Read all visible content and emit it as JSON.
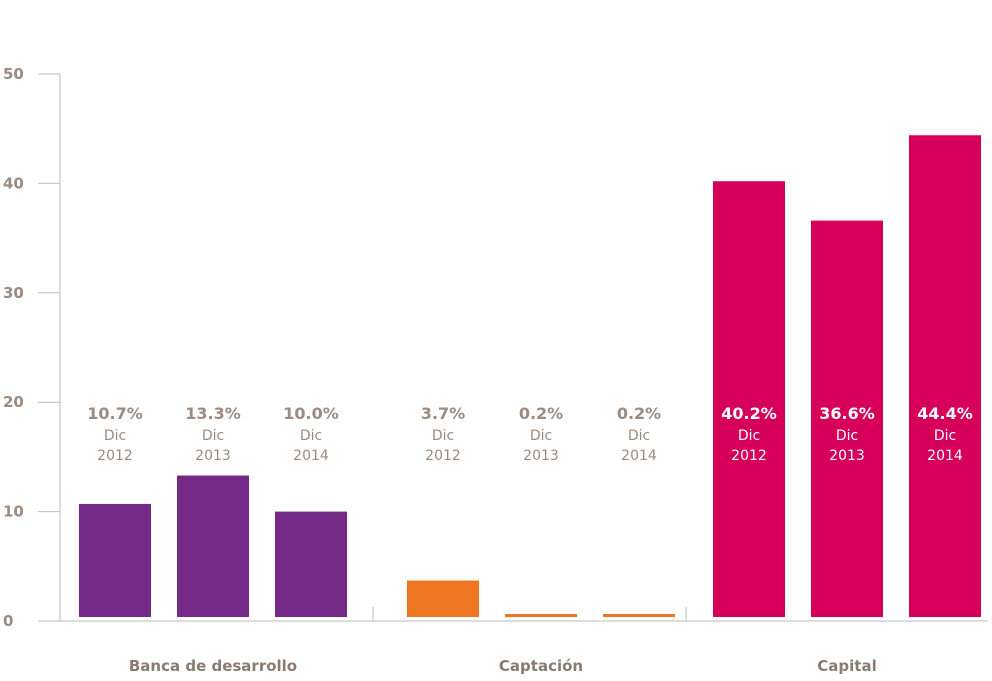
{
  "chart_data": {
    "type": "bar",
    "ylim": [
      0,
      50
    ],
    "yticks": [
      "0",
      "10",
      "20",
      "30",
      "40",
      "50"
    ],
    "grid": false,
    "groups": [
      {
        "name": "Banca de desarrollo",
        "color": "#762a88",
        "bars": [
          {
            "value": 10.7,
            "label": "10.7%",
            "line1": "Dic",
            "line2": "2012"
          },
          {
            "value": 13.3,
            "label": "13.3%",
            "line1": "Dic",
            "line2": "2013"
          },
          {
            "value": 10.0,
            "label": "10.0%",
            "line1": "Dic",
            "line2": "2014"
          }
        ]
      },
      {
        "name": "Captación",
        "color": "#ef7622",
        "bars": [
          {
            "value": 3.7,
            "label": "3.7%",
            "line1": "Dic",
            "line2": "2012"
          },
          {
            "value": 0.2,
            "label": "0.2%",
            "line1": "Dic",
            "line2": "2013"
          },
          {
            "value": 0.2,
            "label": "0.2%",
            "line1": "Dic",
            "line2": "2014"
          }
        ]
      },
      {
        "name": "Capital",
        "color": "#d6005a",
        "bars": [
          {
            "value": 40.2,
            "label": "40.2%",
            "line1": "Dic",
            "line2": "2012"
          },
          {
            "value": 36.6,
            "label": "36.6%",
            "line1": "Dic",
            "line2": "2013"
          },
          {
            "value": 44.4,
            "label": "44.4%",
            "line1": "Dic",
            "line2": "2014"
          }
        ]
      }
    ],
    "colors": {
      "axis": "#bbbbbb",
      "tick_text": "#9b8b80",
      "category_text": "#8a7b70",
      "label_outside": "#9b8b80",
      "label_inside": "#ffffff"
    }
  }
}
